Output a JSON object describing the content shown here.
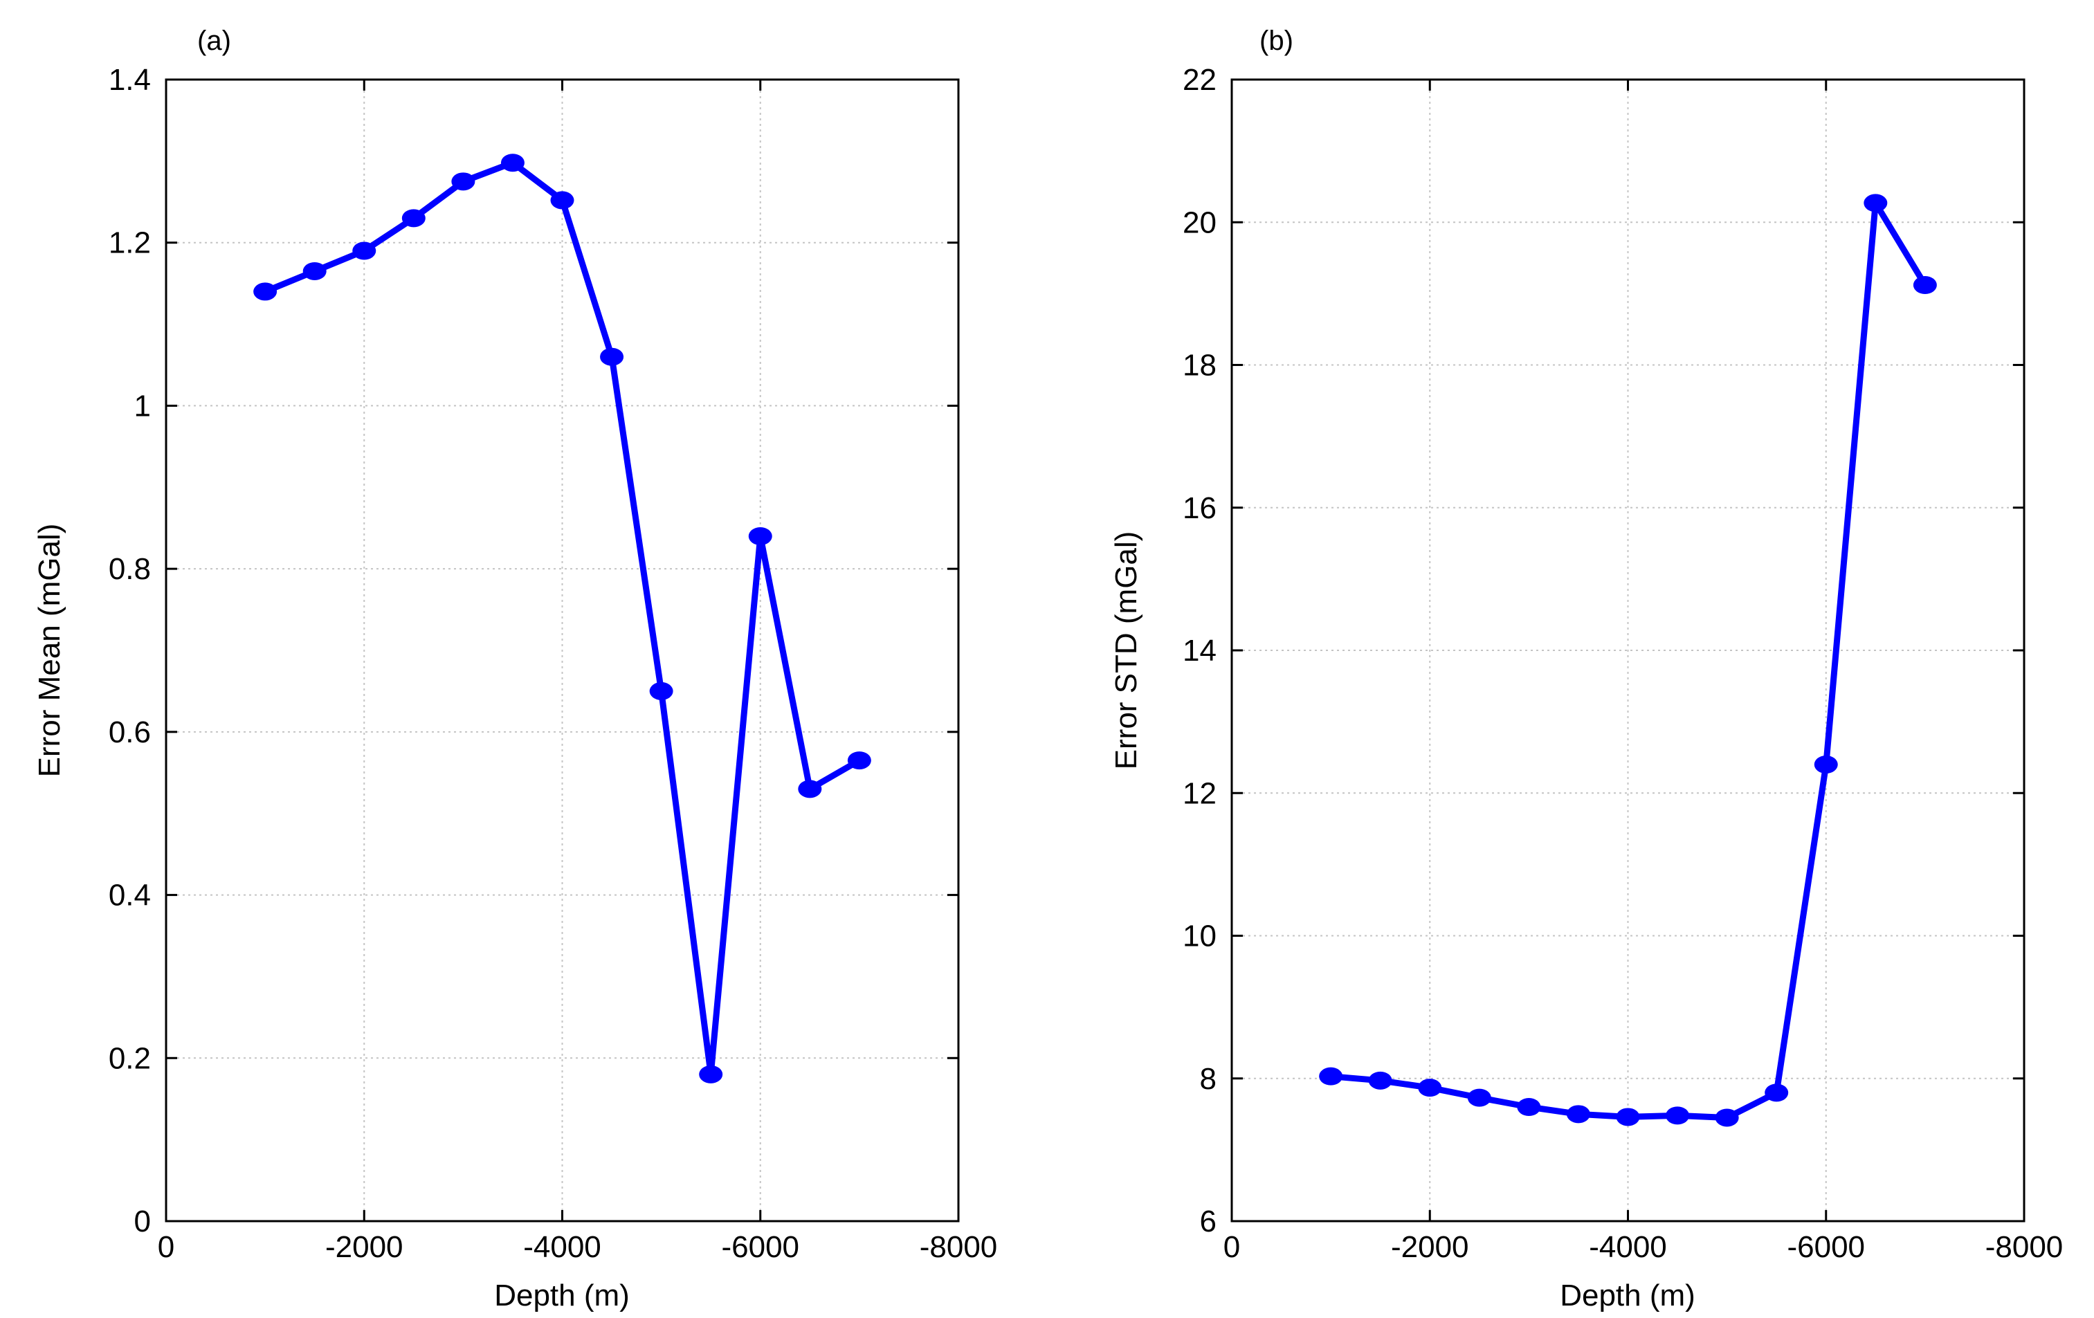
{
  "chart_data": [
    {
      "type": "line",
      "panel_label": "(a)",
      "xlabel": "Depth (m)",
      "ylabel": "Error Mean (mGal)",
      "xlim": [
        0,
        -8000
      ],
      "ylim": [
        0,
        1.4
      ],
      "xticks": [
        0,
        -2000,
        -4000,
        -6000,
        -8000
      ],
      "xtick_labels": [
        "0",
        "-2000",
        "-4000",
        "-6000",
        "-8000"
      ],
      "yticks": [
        0,
        0.2,
        0.4,
        0.6,
        0.8,
        1,
        1.2,
        1.4
      ],
      "ytick_labels": [
        "0",
        "0.2",
        "0.4",
        "0.6",
        "0.8",
        "1",
        "1.2",
        "1.4"
      ],
      "grid": true,
      "color": "#0000ff",
      "x": [
        -1000,
        -1500,
        -2000,
        -2500,
        -3000,
        -3500,
        -4000,
        -4500,
        -5000,
        -5500,
        -6000,
        -6500,
        -7000
      ],
      "y": [
        1.14,
        1.165,
        1.19,
        1.23,
        1.275,
        1.298,
        1.252,
        1.06,
        0.65,
        0.18,
        0.84,
        0.53,
        0.565
      ]
    },
    {
      "type": "line",
      "panel_label": "(b)",
      "xlabel": "Depth (m)",
      "ylabel": "Error STD (mGal)",
      "xlim": [
        0,
        -8000
      ],
      "ylim": [
        6,
        22
      ],
      "xticks": [
        0,
        -2000,
        -4000,
        -6000,
        -8000
      ],
      "xtick_labels": [
        "0",
        "-2000",
        "-4000",
        "-6000",
        "-8000"
      ],
      "yticks": [
        6,
        8,
        10,
        12,
        14,
        16,
        18,
        20,
        22
      ],
      "ytick_labels": [
        "6",
        "8",
        "10",
        "12",
        "14",
        "16",
        "18",
        "20",
        "22"
      ],
      "grid": true,
      "color": "#0000ff",
      "x": [
        -1000,
        -1500,
        -2000,
        -2500,
        -3000,
        -3500,
        -4000,
        -4500,
        -5000,
        -5500,
        -6000,
        -6500,
        -7000
      ],
      "y": [
        8.03,
        7.97,
        7.87,
        7.73,
        7.6,
        7.5,
        7.46,
        7.48,
        7.45,
        7.8,
        12.4,
        20.27,
        19.12
      ]
    }
  ]
}
